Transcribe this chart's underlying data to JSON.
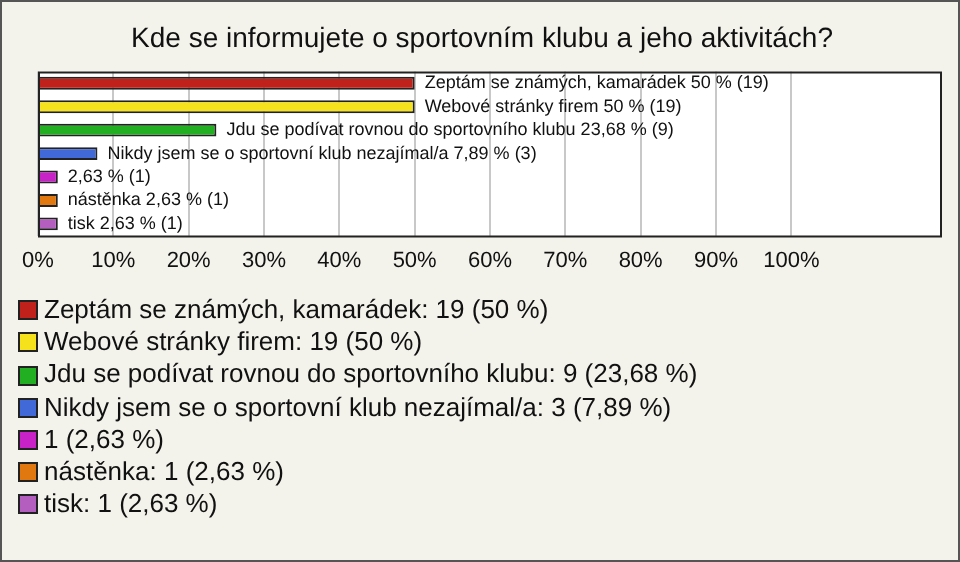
{
  "chart_data": {
    "type": "bar",
    "orientation": "horizontal",
    "title": "Kde se informujete o sportovním klubu a jeho aktivitách?",
    "categories": [
      null,
      null,
      null,
      null,
      null,
      null,
      null
    ],
    "series": [
      {
        "name": "Zeptám se známých, kamarádek: 19 (50 %)",
        "color": "#c0221b",
        "values": [
          50,
          null,
          null,
          null,
          null,
          null,
          null
        ],
        "value_labels": [
          "Zeptám se známých, kamarádek 50 % (19)",
          null,
          null,
          null,
          null,
          null,
          null
        ]
      },
      {
        "name": "Webové stránky firem: 19 (50 %)",
        "color": "#f5e21c",
        "values": [
          null,
          50,
          null,
          null,
          null,
          null,
          null
        ],
        "value_labels": [
          null,
          "Webové stránky firem 50 % (19)",
          null,
          null,
          null,
          null,
          null
        ]
      },
      {
        "name": "Jdu se podívat rovnou do sportovního klubu: 9 (23,68 %)",
        "color": "#22b022",
        "values": [
          null,
          null,
          23.68,
          null,
          null,
          null,
          null
        ],
        "value_labels": [
          null,
          null,
          "Jdu se podívat rovnou do sportovního klubu 23,68 % (9)",
          null,
          null,
          null,
          null
        ]
      },
      {
        "name": "Nikdy jsem se o sportovní klub nezajímal/a: 3 (7,89 %)",
        "color": "#4169d8",
        "values": [
          null,
          null,
          null,
          7.89,
          null,
          null,
          null
        ],
        "value_labels": [
          null,
          null,
          null,
          "Nikdy jsem se o sportovní klub nezajímal/a 7,89 % (3)",
          null,
          null,
          null
        ]
      },
      {
        "name": "1 (2,63 %)",
        "color": "#c822c8",
        "values": [
          null,
          null,
          null,
          null,
          2.63,
          null,
          null
        ],
        "value_labels": [
          null,
          null,
          null,
          null,
          "2,63 % (1)",
          null,
          null
        ]
      },
      {
        "name": "nástěnka: 1 (2,63 %)",
        "color": "#e0780f",
        "values": [
          null,
          null,
          null,
          null,
          null,
          2.63,
          null
        ],
        "value_labels": [
          null,
          null,
          null,
          null,
          null,
          "nástěnka 2,63 % (1)",
          null
        ]
      },
      {
        "name": "tisk: 1 (2,63 %)",
        "color": "#b45fc0",
        "values": [
          null,
          null,
          null,
          null,
          null,
          null,
          2.63
        ],
        "value_labels": [
          null,
          null,
          null,
          null,
          null,
          null,
          "tisk 2,63 % (1)"
        ]
      }
    ],
    "xlim": [
      0,
      120
    ],
    "xticks": [
      {
        "value": 0,
        "label": "0%"
      },
      {
        "value": 10,
        "label": "10%"
      },
      {
        "value": 20,
        "label": "20%"
      },
      {
        "value": 30,
        "label": "30%"
      },
      {
        "value": 40,
        "label": "40%"
      },
      {
        "value": 50,
        "label": "50%"
      },
      {
        "value": 60,
        "label": "60%"
      },
      {
        "value": 70,
        "label": "70%"
      },
      {
        "value": 80,
        "label": "80%"
      },
      {
        "value": 90,
        "label": "90%"
      },
      {
        "value": 100,
        "label": "100%"
      }
    ],
    "grid": "x",
    "legend": "bottom",
    "tick_labels": "x"
  }
}
